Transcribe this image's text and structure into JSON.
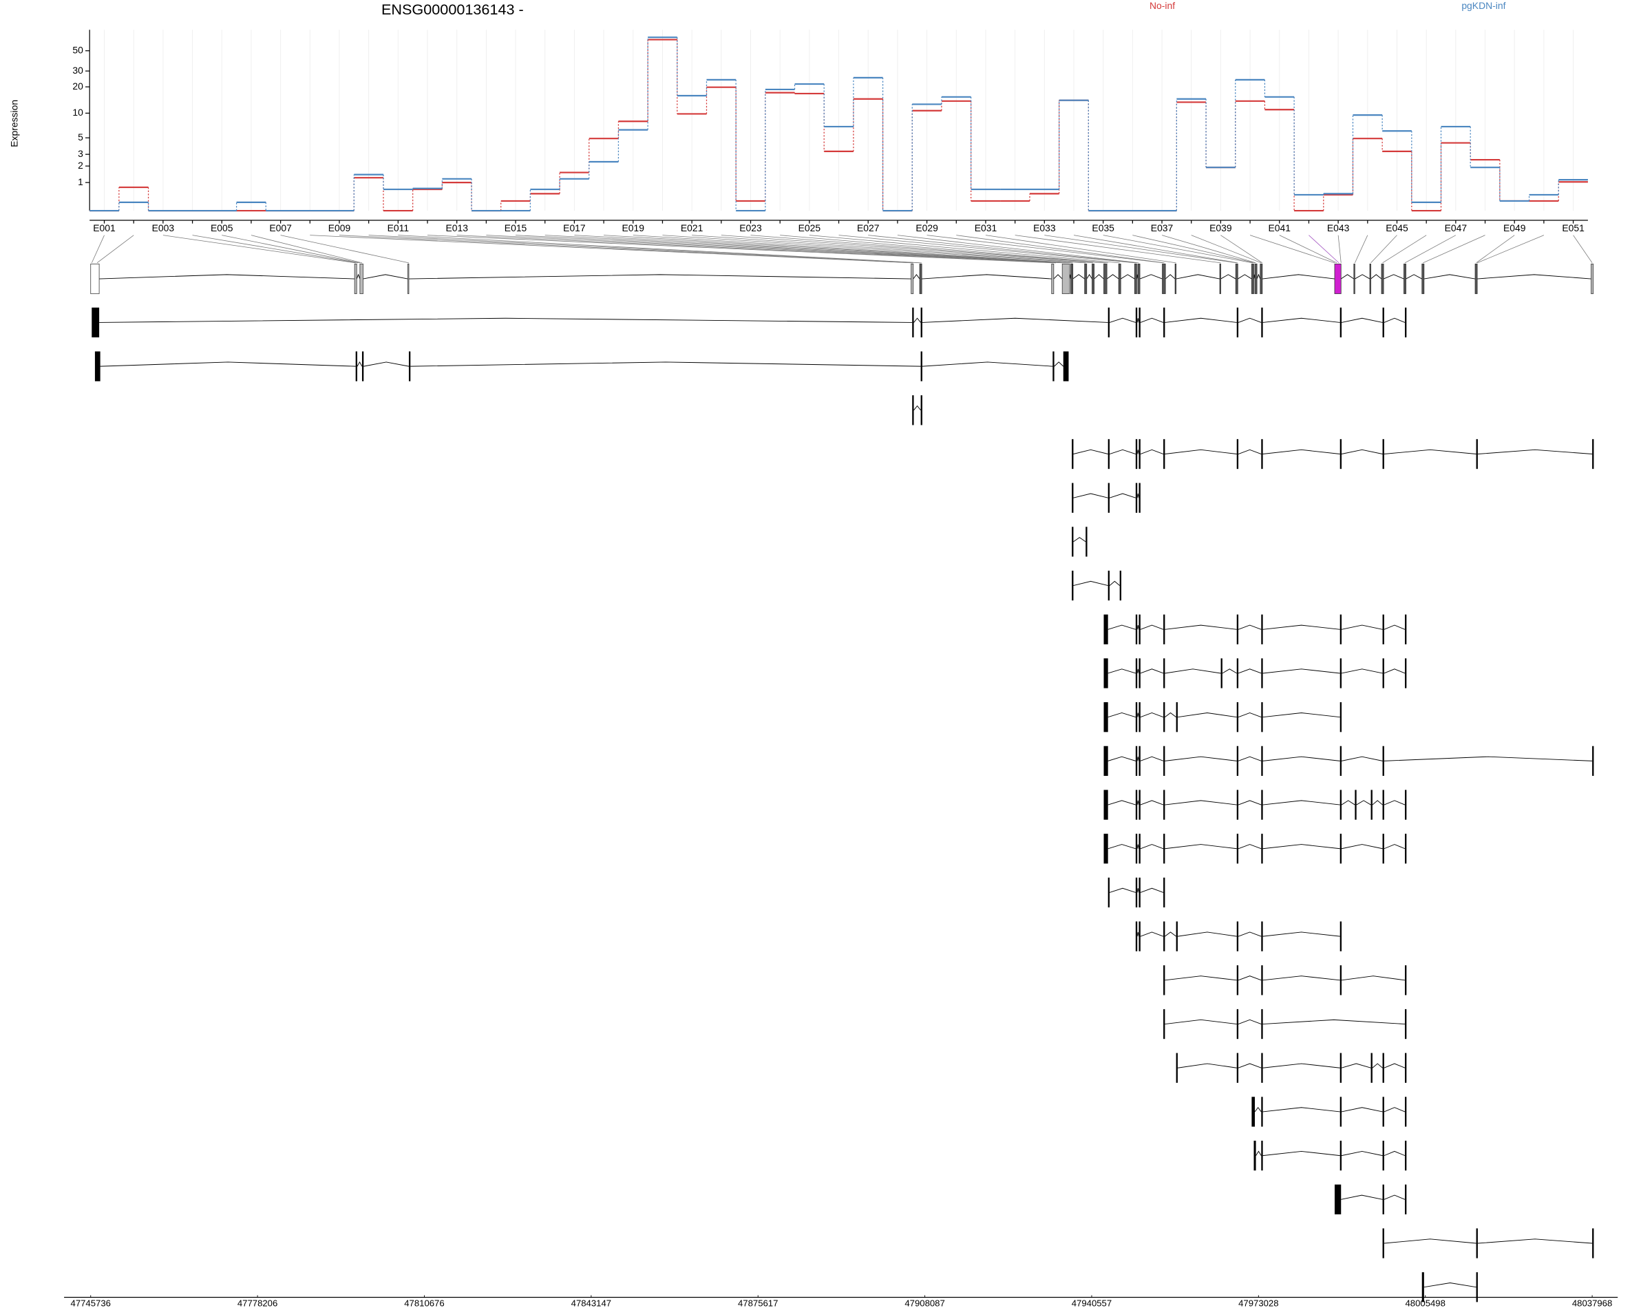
{
  "chart_data": {
    "type": "line",
    "title": "ENSG00000136143 -",
    "ylabel": "Expression",
    "categories": [
      "E001",
      null,
      "E003",
      null,
      "E005",
      null,
      "E007",
      null,
      "E009",
      null,
      "E011",
      null,
      "E013",
      null,
      "E015",
      null,
      "E017",
      null,
      "E019",
      null,
      "E021",
      null,
      "E023",
      null,
      "E025",
      null,
      "E027",
      null,
      "E029",
      null,
      "E031",
      null,
      "E033",
      null,
      "E035",
      null,
      "E037",
      null,
      "E039",
      null,
      "E041",
      null,
      "E043",
      null,
      "E045",
      null,
      "E047",
      null,
      "E049",
      null,
      "E051"
    ],
    "series": [
      {
        "name": "No-inf",
        "color": "#d43a3a",
        "values": [
          0,
          0.78,
          0,
          0,
          0,
          0,
          0,
          0,
          0,
          1.25,
          0,
          0.69,
          1.0,
          0,
          0.27,
          0.52,
          1.56,
          4.9,
          8.0,
          66,
          9.8,
          19.8,
          0.27,
          17.2,
          16.8,
          3.3,
          14.6,
          0,
          10.7,
          13.8,
          0.27,
          0.27,
          0.52,
          14.1,
          0,
          0,
          0,
          13.4,
          1.9,
          13.8,
          11.0,
          0,
          0.48,
          4.9,
          3.3,
          0,
          4.3,
          2.5,
          0.27,
          0.27,
          1.03
        ]
      },
      {
        "name": "pgKDN-inf",
        "color": "#4a86c0",
        "values": [
          0,
          0.23,
          0,
          0,
          0,
          0.23,
          0,
          0,
          0,
          1.43,
          0.69,
          0.73,
          1.19,
          0,
          0,
          0.69,
          1.19,
          2.33,
          6.3,
          70,
          15.9,
          24,
          0,
          18.7,
          21.5,
          6.9,
          25.3,
          0,
          12.7,
          15.4,
          0.69,
          0.69,
          0.69,
          14.1,
          0,
          0,
          0,
          14.6,
          1.9,
          24,
          15.4,
          0.48,
          0.52,
          9.5,
          6.1,
          0.23,
          6.9,
          1.9,
          0.27,
          0.48,
          1.14
        ]
      }
    ],
    "ylim": [
      0,
      80
    ],
    "yticks": [
      1,
      2,
      3,
      5,
      10,
      20,
      30,
      50
    ],
    "yscale": "log",
    "log_offset": 1,
    "step": true,
    "grid": true,
    "legend": "top",
    "coord_lim": [
      47745736,
      48037968
    ],
    "coord_ticks": [
      47745736,
      47778206,
      47810676,
      47843147,
      47875617,
      47908087,
      47940557,
      47973028,
      48005498,
      48037968
    ]
  }
}
